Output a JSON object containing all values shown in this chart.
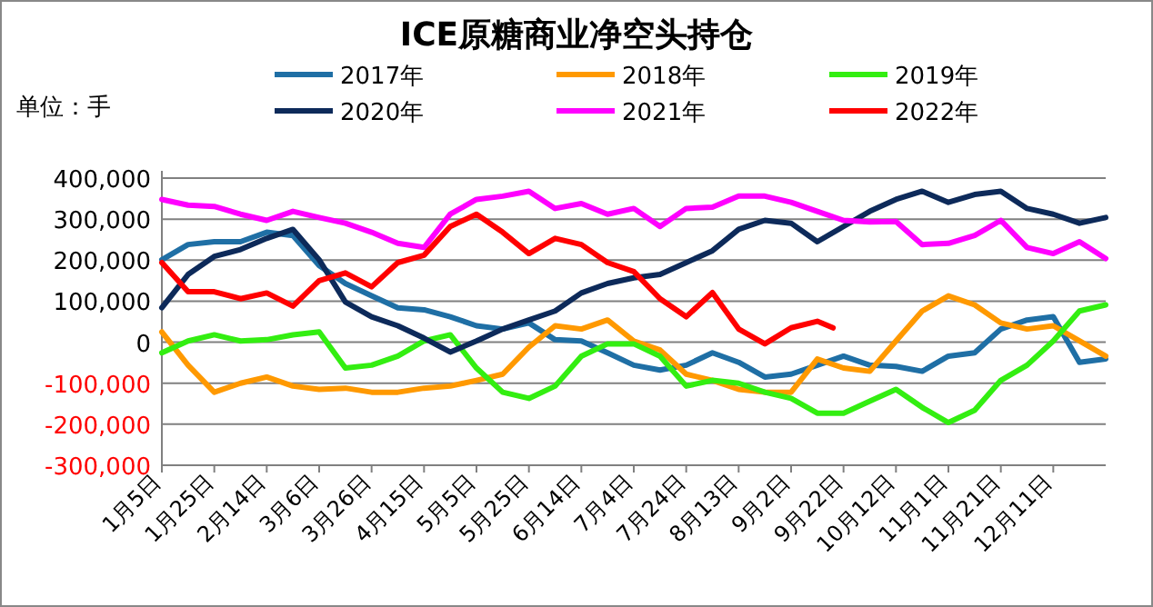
{
  "chart_data": {
    "type": "line",
    "title": "ICE原糖商业净空头持仓",
    "ylabel": "单位：手",
    "x": [
      "--01-05",
      "--01-15",
      "--01-25",
      "--02-04",
      "--02-14",
      "--02-24",
      "--03-06",
      "--03-16",
      "--03-26",
      "--04-05",
      "--04-15",
      "--04-25",
      "--05-05",
      "--05-15",
      "--05-25",
      "--06-04",
      "--06-14",
      "--06-24",
      "--07-04",
      "--07-14",
      "--07-24",
      "--08-03",
      "--08-13",
      "--08-23",
      "--09-02",
      "--09-12",
      "--09-22",
      "--10-02",
      "--10-12",
      "--10-22",
      "--11-01",
      "--11-11",
      "--11-21",
      "--12-01",
      "--12-11",
      "--12-21",
      "--12-31"
    ],
    "xlim": [
      "--01-05",
      "--12-31"
    ],
    "xticks": [
      {
        "value": "--01-05",
        "label": "1月5日"
      },
      {
        "value": "--01-25",
        "label": "1月25日"
      },
      {
        "value": "--02-14",
        "label": "2月14日"
      },
      {
        "value": "--03-06",
        "label": "3月6日"
      },
      {
        "value": "--03-26",
        "label": "3月26日"
      },
      {
        "value": "--04-15",
        "label": "4月15日"
      },
      {
        "value": "--05-05",
        "label": "5月5日"
      },
      {
        "value": "--05-25",
        "label": "5月25日"
      },
      {
        "value": "--06-14",
        "label": "6月14日"
      },
      {
        "value": "--07-04",
        "label": "7月4日"
      },
      {
        "value": "--07-24",
        "label": "7月24日"
      },
      {
        "value": "--08-13",
        "label": "8月13日"
      },
      {
        "value": "--09-02",
        "label": "9月2日"
      },
      {
        "value": "--09-22",
        "label": "9月22日"
      },
      {
        "value": "--10-12",
        "label": "10月12日"
      },
      {
        "value": "--11-01",
        "label": "11月1日"
      },
      {
        "value": "--11-21",
        "label": "11月21日"
      },
      {
        "value": "--12-11",
        "label": "12月11日"
      }
    ],
    "ylim": [
      -300000,
      400000
    ],
    "yticks": [
      {
        "value": -300000,
        "label": "-300,000"
      },
      {
        "value": -200000,
        "label": "-200,000"
      },
      {
        "value": -100000,
        "label": "-100,000"
      },
      0,
      {
        "value": 100000,
        "label": "100,000"
      },
      {
        "value": 200000,
        "label": "200,000"
      },
      {
        "value": 300000,
        "label": "300,000"
      },
      {
        "value": 400000,
        "label": "400,000"
      }
    ],
    "grid": "y",
    "legend": "top",
    "line_style": "solid",
    "marker": "none",
    "series": [
      {
        "name": "2017年",
        "color": "#1f6fa5",
        "values": [
          201000,
          238000,
          245000,
          245000,
          268000,
          260000,
          187000,
          143000,
          113000,
          84000,
          79000,
          62000,
          40000,
          32000,
          47000,
          6000,
          3000,
          -26000,
          -56000,
          -68000,
          -56000,
          -26000,
          -49000,
          -85000,
          -78000,
          -56000,
          -34000,
          -56000,
          -59000,
          -71000,
          -34000,
          -26000,
          32000,
          54000,
          62000,
          -49000,
          -41000
        ]
      },
      {
        "name": "2018年",
        "color": "#ff9900",
        "values": [
          25000,
          -56000,
          -122000,
          -100000,
          -85000,
          -107000,
          -115000,
          -112000,
          -122000,
          -122000,
          -112000,
          -107000,
          -93000,
          -78000,
          -12000,
          40000,
          32000,
          54000,
          3000,
          -19000,
          -78000,
          -93000,
          -115000,
          -122000,
          -122000,
          -41000,
          -63000,
          -71000,
          3000,
          76000,
          113000,
          91000,
          47000,
          32000,
          40000,
          3000,
          -34000
        ]
      },
      {
        "name": "2019年",
        "color": "#33ee11",
        "values": [
          -26000,
          3000,
          18000,
          3000,
          6000,
          18000,
          25000,
          -63000,
          -56000,
          -34000,
          3000,
          18000,
          -63000,
          -122000,
          -137000,
          -107000,
          -34000,
          -4000,
          -4000,
          -34000,
          -107000,
          -93000,
          -100000,
          -122000,
          -137000,
          -173000,
          -173000,
          -144000,
          -115000,
          -159000,
          -196000,
          -166000,
          -93000,
          -56000,
          3000,
          76000,
          91000
        ]
      },
      {
        "name": "2020年",
        "color": "#0d2a5a",
        "values": [
          84000,
          165000,
          209000,
          226000,
          253000,
          275000,
          201000,
          98000,
          62000,
          40000,
          10000,
          -24000,
          3000,
          32000,
          54000,
          76000,
          120000,
          143000,
          157000,
          165000,
          194000,
          223000,
          275000,
          297000,
          290000,
          245000,
          282000,
          319000,
          348000,
          368000,
          341000,
          360000,
          368000,
          326000,
          312000,
          290000,
          304000
        ]
      },
      {
        "name": "2021年",
        "color": "#ff00ff",
        "values": [
          348000,
          334000,
          331000,
          312000,
          297000,
          319000,
          304000,
          290000,
          268000,
          241000,
          231000,
          312000,
          348000,
          356000,
          368000,
          326000,
          338000,
          312000,
          326000,
          282000,
          326000,
          329000,
          356000,
          356000,
          341000,
          319000,
          297000,
          293000,
          294000,
          238000,
          241000,
          260000,
          297000,
          231000,
          216000,
          245000,
          204000
        ]
      },
      {
        "name": "2022年",
        "color": "#ff0000",
        "x": [
          "--01-05",
          "--01-15",
          "--01-25",
          "--02-04",
          "--02-14",
          "--02-24",
          "--03-06",
          "--03-16",
          "--03-26",
          "--04-05",
          "--04-15",
          "--04-25",
          "--05-05",
          "--05-15",
          "--05-25",
          "--06-04",
          "--06-14",
          "--06-24",
          "--07-04",
          "--07-14",
          "--07-24",
          "--08-03",
          "--08-13",
          "--08-23",
          "--09-02",
          "--09-12",
          "--09-18"
        ],
        "values": [
          194000,
          123000,
          123000,
          106000,
          120000,
          88000,
          150000,
          169000,
          135000,
          194000,
          212000,
          282000,
          312000,
          268000,
          216000,
          253000,
          238000,
          194000,
          172000,
          106000,
          62000,
          121000,
          32000,
          -4000,
          35000,
          51000,
          35000
        ]
      }
    ]
  }
}
